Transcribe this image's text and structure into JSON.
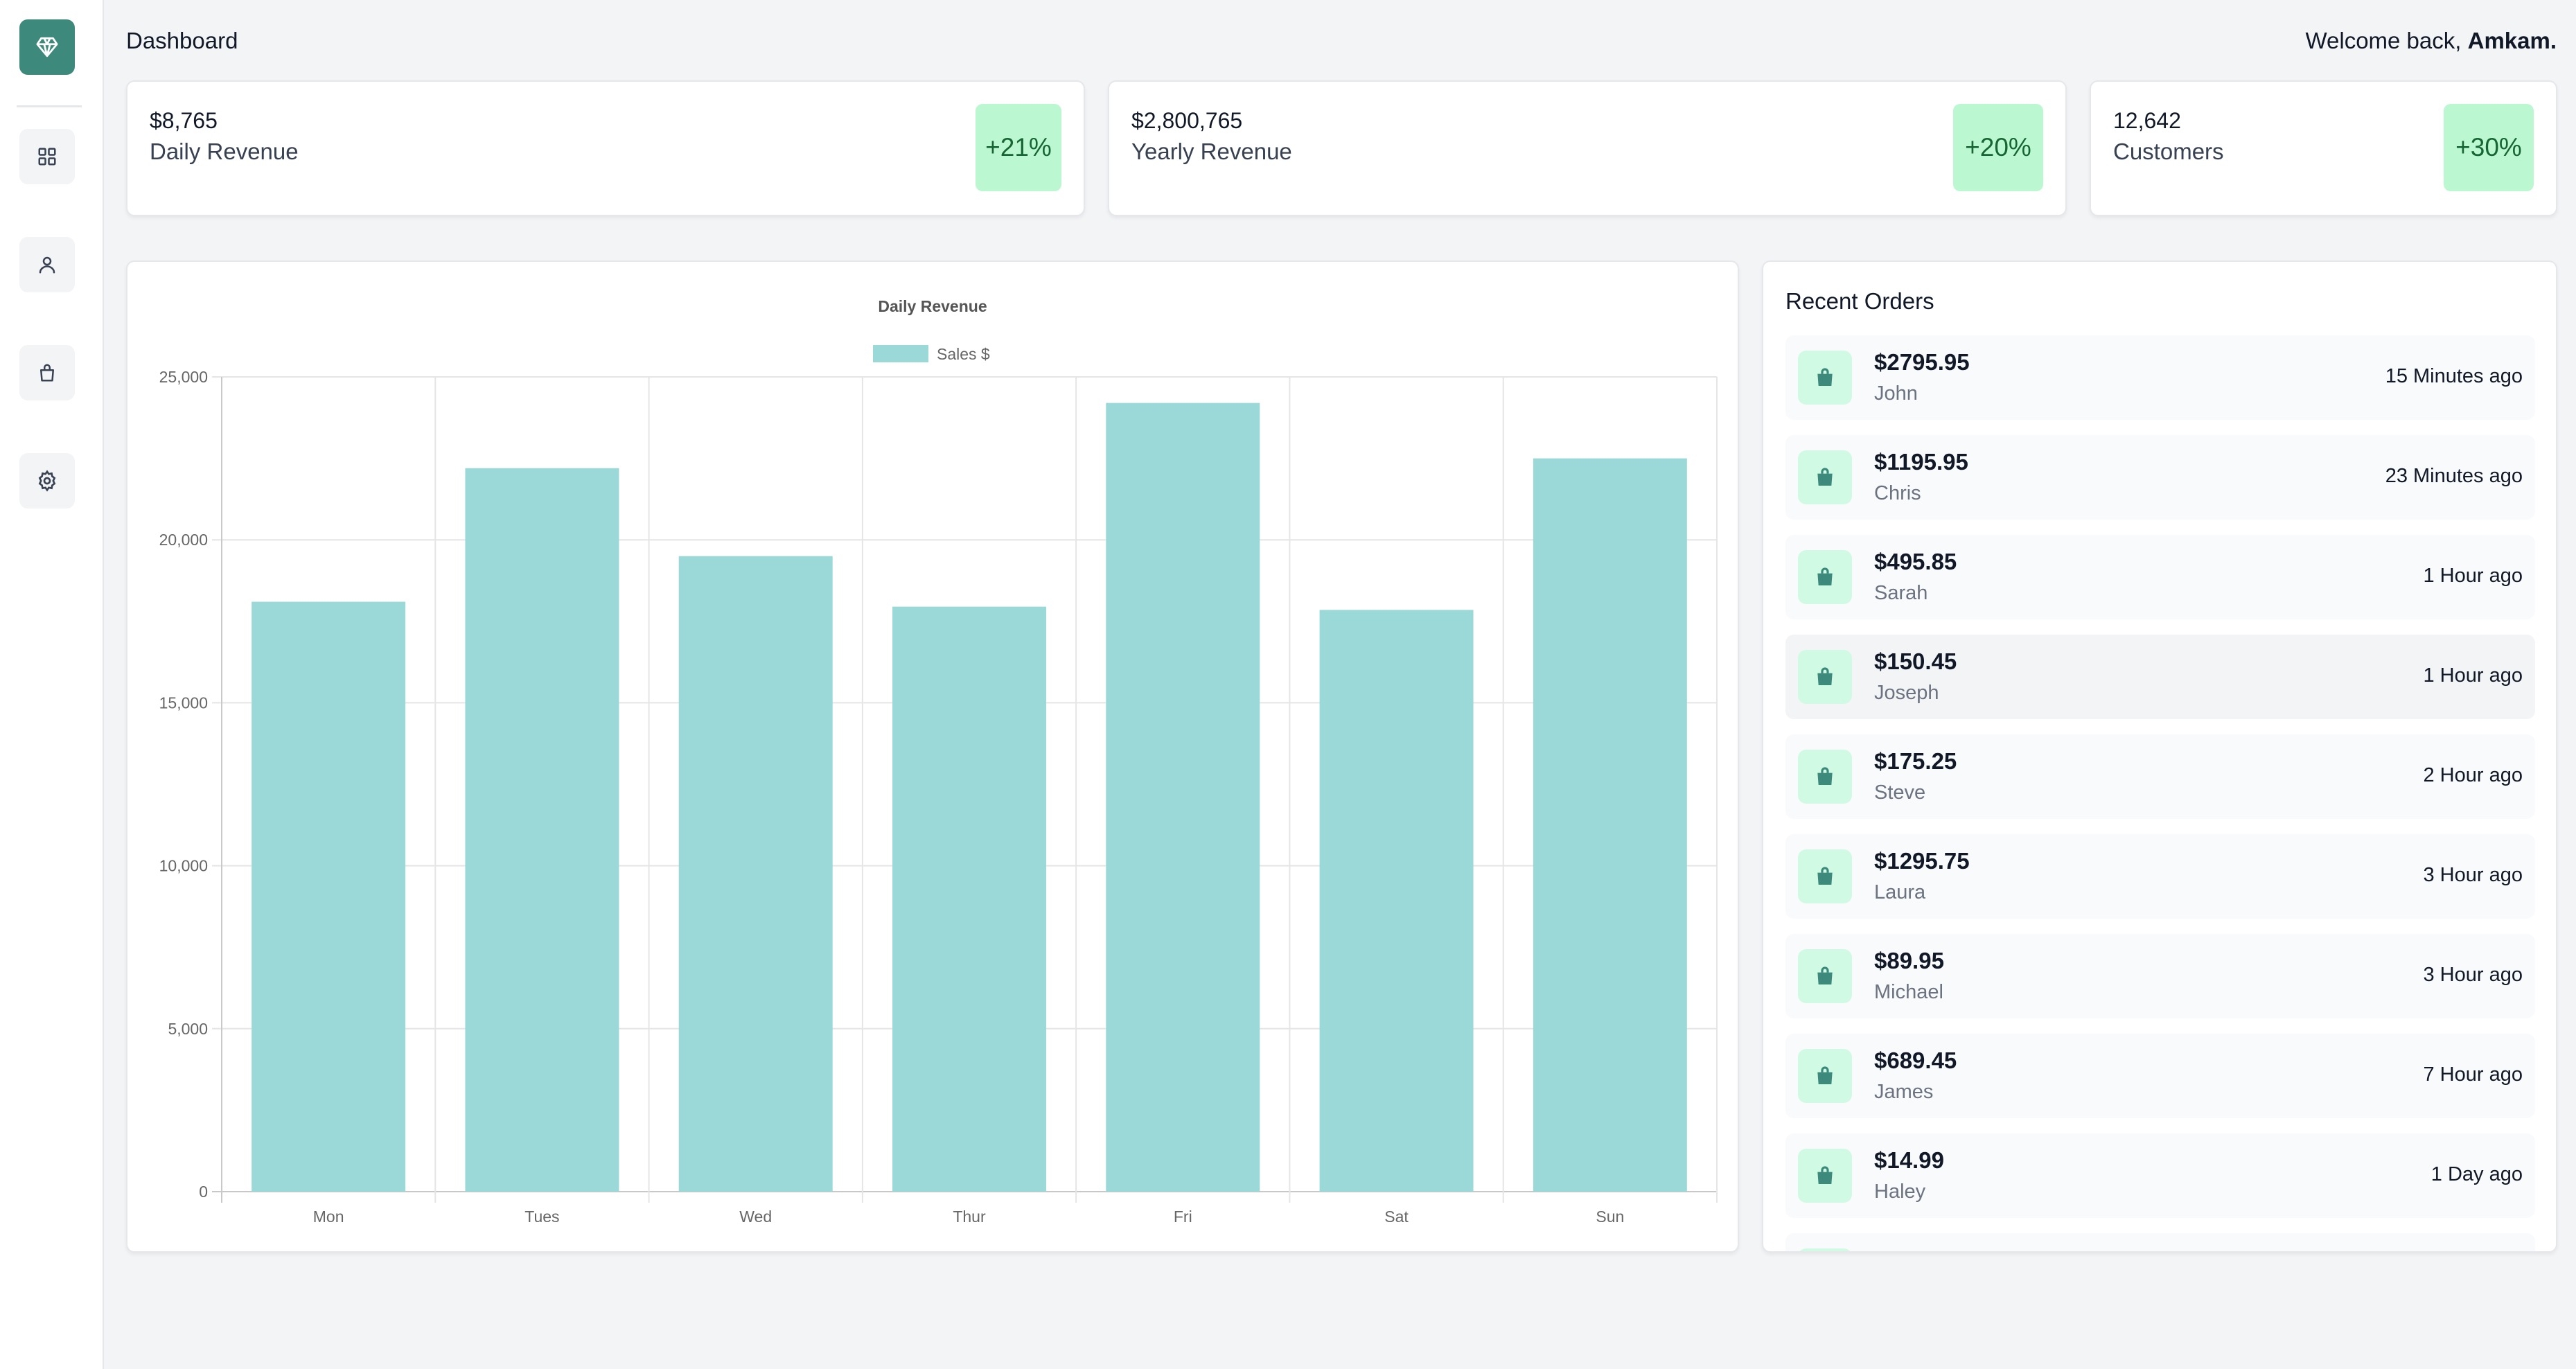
{
  "header": {
    "title": "Dashboard",
    "welcome_prefix": "Welcome back, ",
    "user_name": "Amkam."
  },
  "sidebar": {
    "items": [
      {
        "icon": "grid-icon"
      },
      {
        "icon": "user-icon"
      },
      {
        "icon": "bag-icon"
      },
      {
        "icon": "gear-icon"
      }
    ]
  },
  "stats": [
    {
      "value": "$8,765",
      "label": "Daily Revenue",
      "change": "+21%"
    },
    {
      "value": "$2,800,765",
      "label": "Yearly Revenue",
      "change": "+20%"
    },
    {
      "value": "12,642",
      "label": "Customers",
      "change": "+30%"
    }
  ],
  "colors": {
    "brand": "#3d8a7c",
    "bar": "#9ad9d8",
    "badge_bg": "#bbf7d0",
    "badge_text": "#166534"
  },
  "chart_data": {
    "type": "bar",
    "title": "Daily Revenue",
    "categories": [
      "Mon",
      "Tues",
      "Wed",
      "Thur",
      "Fri",
      "Sat",
      "Sun"
    ],
    "series": [
      {
        "name": "Sales $",
        "values": [
          18100,
          22200,
          19500,
          17950,
          24200,
          17850,
          22500
        ]
      }
    ],
    "ylim": [
      0,
      25000
    ],
    "yticks": [
      0,
      5000,
      10000,
      15000,
      20000,
      25000
    ],
    "ytick_labels": [
      "0",
      "5,000",
      "10,000",
      "15,000",
      "20,000",
      "25,000"
    ],
    "grid": true,
    "legend": "top"
  },
  "orders": {
    "title": "Recent Orders",
    "items": [
      {
        "amount": "$2795.95",
        "name": "John",
        "time": "15 Minutes ago"
      },
      {
        "amount": "$1195.95",
        "name": "Chris",
        "time": "23 Minutes ago"
      },
      {
        "amount": "$495.85",
        "name": "Sarah",
        "time": "1 Hour ago"
      },
      {
        "amount": "$150.45",
        "name": "Joseph",
        "time": "1 Hour ago"
      },
      {
        "amount": "$175.25",
        "name": "Steve",
        "time": "2 Hour ago"
      },
      {
        "amount": "$1295.75",
        "name": "Laura",
        "time": "3 Hour ago"
      },
      {
        "amount": "$89.95",
        "name": "Michael",
        "time": "3 Hour ago"
      },
      {
        "amount": "$689.45",
        "name": "James",
        "time": "7 Hour ago"
      },
      {
        "amount": "$14.99",
        "name": "Haley",
        "time": "1 Day ago"
      }
    ]
  }
}
